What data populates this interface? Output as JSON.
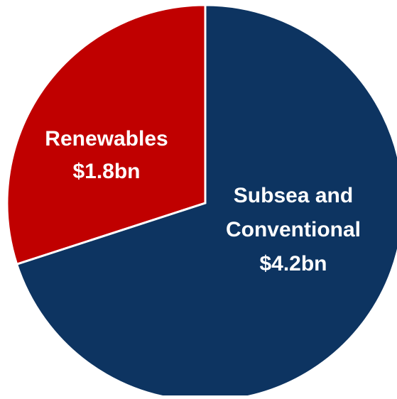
{
  "chart_data": {
    "type": "pie",
    "title": "",
    "slices": [
      {
        "label_lines": [
          "Renewables",
          "$1.8bn"
        ],
        "category": "Renewables",
        "value": 1.8,
        "unit": "$bn",
        "display_value": "$1.8bn",
        "color": "#C00000"
      },
      {
        "label_lines": [
          "Subsea and",
          "Conventional",
          "$4.2bn"
        ],
        "category": "Subsea and Conventional",
        "value": 4.2,
        "unit": "$bn",
        "display_value": "$4.2bn",
        "color": "#0D3461"
      }
    ],
    "slice_border_color": "#ffffff",
    "legend": "none"
  }
}
